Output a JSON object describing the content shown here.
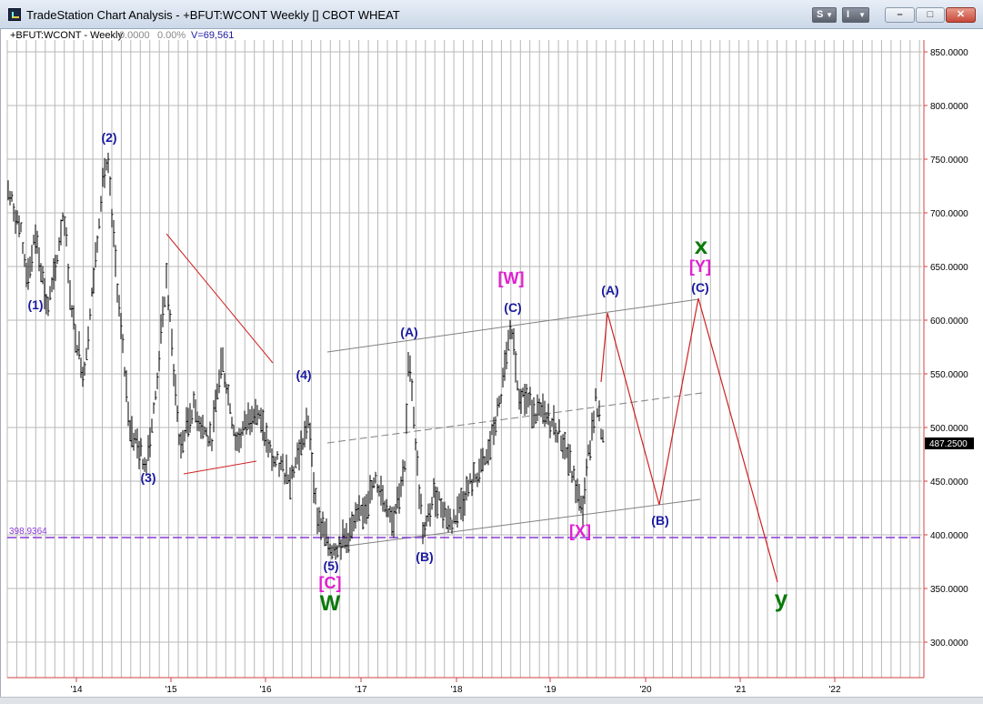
{
  "window": {
    "title": "TradeStation Chart Analysis - +BFUT:WCONT Weekly [] CBOT WHEAT",
    "buttons": {
      "s_label": "S",
      "i_label": "I",
      "minimize_glyph": "–",
      "maximize_glyph": "□",
      "close_glyph": "✕"
    }
  },
  "chart_header": {
    "symbol": "+BFUT:WCONT - Weekly",
    "net_change": "0.0000",
    "pct_change": "0.00%",
    "volume": "V=69,561"
  },
  "price_axis": {
    "ticks": [
      "850.0000",
      "800.0000",
      "750.0000",
      "700.0000",
      "650.0000",
      "600.0000",
      "550.0000",
      "500.0000",
      "450.0000",
      "400.0000",
      "350.0000",
      "300.0000"
    ],
    "last_price": "487.2500"
  },
  "support_line": {
    "label": "398.9364"
  },
  "time_axis": {
    "ticks": [
      "14",
      "15",
      "16",
      "17",
      "18",
      "19",
      "20",
      "21",
      "22"
    ]
  },
  "wave_labels": {
    "w1": "(1)",
    "w2": "(2)",
    "w3": "(3)",
    "w4": "(4)",
    "w5": "(5)",
    "bracket_c": "[C]",
    "big_w": "W",
    "a_2017": "(A)",
    "b_2017": "(B)",
    "c_2018": "(C)",
    "bracket_w": "[W]",
    "bracket_x": "[X]",
    "a_2019": "(A)",
    "b_2020": "(B)",
    "c_2020": "(C)",
    "bracket_y": "[Y]",
    "big_x": "x",
    "big_y": "y"
  },
  "colors": {
    "wave_blue": "#1a1aa0",
    "wave_magenta": "#e020d0",
    "wave_green": "#0a7a0a",
    "projection_red": "#d02020",
    "channel_gray": "#808080",
    "support_purple": "#8a3ad8",
    "axis_red": "#d04040",
    "price_bars": "#000000"
  }
}
